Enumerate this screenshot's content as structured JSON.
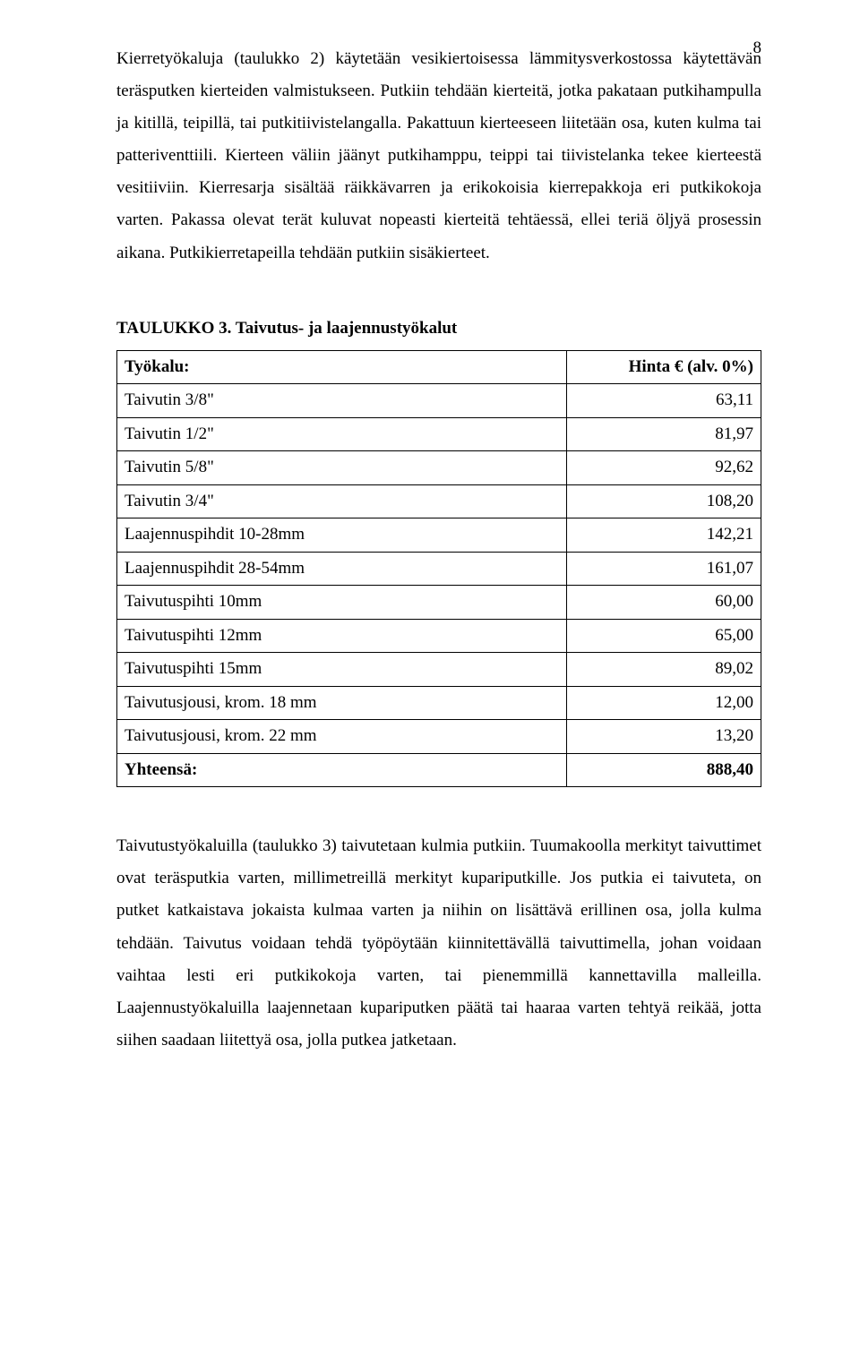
{
  "pageNumber": "8",
  "paragraph1": "Kierretyökaluja (taulukko 2) käytetään vesikiertoisessa lämmitysverkostossa käytettävän teräsputken kierteiden valmistukseen. Putkiin tehdään kierteitä, jotka pakataan putkihampulla ja kitillä, teipillä, tai putkitiivistelangalla. Pakattuun kierteeseen liitetään osa, kuten kulma tai patteriventtiili. Kierteen väliin jäänyt putkihamppu, teippi tai tiivistelanka tekee kierteestä vesitiiviin. Kierresarja sisältää räikkävarren ja erikokoisia kierrepakkoja eri putkikokoja varten. Pakassa olevat terät kuluvat nopeasti kierteitä tehtäessä, ellei teriä öljyä prosessin aikana. Putkikierretapeilla tehdään putkiin sisäkierteet.",
  "tableHeading": "TAULUKKO 3. Taivutus- ja laajennustyökalut",
  "header": {
    "label": "Työkalu:",
    "price": "Hinta € (alv. 0%)"
  },
  "rows": [
    {
      "label": "Taivutin 3/8\"",
      "price": "63,11"
    },
    {
      "label": "Taivutin 1/2\"",
      "price": "81,97"
    },
    {
      "label": "Taivutin 5/8\"",
      "price": "92,62"
    },
    {
      "label": "Taivutin 3/4\"",
      "price": "108,20"
    },
    {
      "label": "Laajennuspihdit 10-28mm",
      "price": "142,21"
    },
    {
      "label": "Laajennuspihdit 28-54mm",
      "price": "161,07"
    },
    {
      "label": "Taivutuspihti 10mm",
      "price": "60,00"
    },
    {
      "label": "Taivutuspihti 12mm",
      "price": "65,00"
    },
    {
      "label": "Taivutuspihti 15mm",
      "price": "89,02"
    },
    {
      "label": "Taivutusjousi, krom. 18 mm",
      "price": "12,00"
    },
    {
      "label": "Taivutusjousi, krom. 22 mm",
      "price": "13,20"
    }
  ],
  "total": {
    "label": "Yhteensä:",
    "price": "888,40"
  },
  "paragraph2": "Taivutustyökaluilla (taulukko 3) taivutetaan kulmia putkiin. Tuumakoolla merkityt taivuttimet ovat teräsputkia varten, millimetreillä merkityt kupariputkille. Jos putkia ei taivuteta, on putket katkaistava jokaista kulmaa varten ja niihin on lisättävä erillinen osa, jolla kulma tehdään. Taivutus voidaan tehdä työpöytään kiinnitettävällä taivuttimella, johan voidaan vaihtaa lesti eri putkikokoja varten, tai pienemmillä kannettavilla malleilla. Laajennustyökaluilla laajennetaan kupariputken päätä tai haaraa varten tehtyä reikää, jotta siihen saadaan liitettyä osa, jolla putkea jatketaan."
}
